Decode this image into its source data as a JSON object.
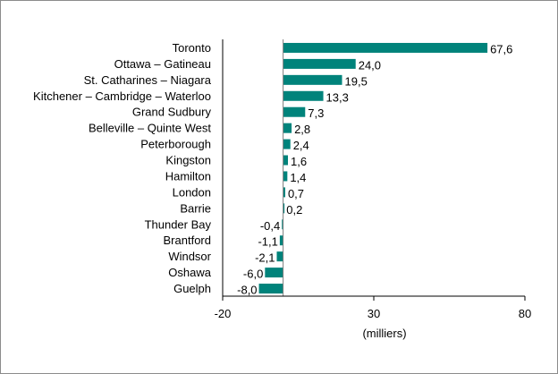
{
  "chart_data": {
    "type": "bar",
    "orientation": "horizontal",
    "categories": [
      "Toronto",
      "Ottawa – Gatineau",
      "St. Catharines – Niagara",
      "Kitchener – Cambridge – Waterloo",
      "Grand Sudbury",
      "Belleville  – Quinte West",
      "Peterborough",
      "Kingston",
      "Hamilton",
      "London",
      "Barrie",
      "Thunder Bay",
      "Brantford",
      "Windsor",
      "Oshawa",
      "Guelph"
    ],
    "values": [
      67.6,
      24.0,
      19.5,
      13.3,
      7.3,
      2.8,
      2.4,
      1.6,
      1.4,
      0.7,
      0.2,
      -0.4,
      -1.1,
      -2.1,
      -6.0,
      -8.0
    ],
    "value_labels": [
      "67,6",
      "24,0",
      "19,5",
      "13,3",
      "7,3",
      "2,8",
      "2,4",
      "1,6",
      "1,4",
      "0,7",
      "0,2",
      "-0,4",
      "-1,1",
      "-2,1",
      "-6,0",
      "-8,0"
    ],
    "xlim": [
      -20,
      80
    ],
    "x_ticks": [
      "-20",
      "30",
      "80"
    ],
    "x_tick_values": [
      -20,
      30,
      80
    ],
    "xlabel": "(milliers)",
    "title": "",
    "grid": false,
    "legend": "none",
    "bar_color": "#00837b"
  }
}
